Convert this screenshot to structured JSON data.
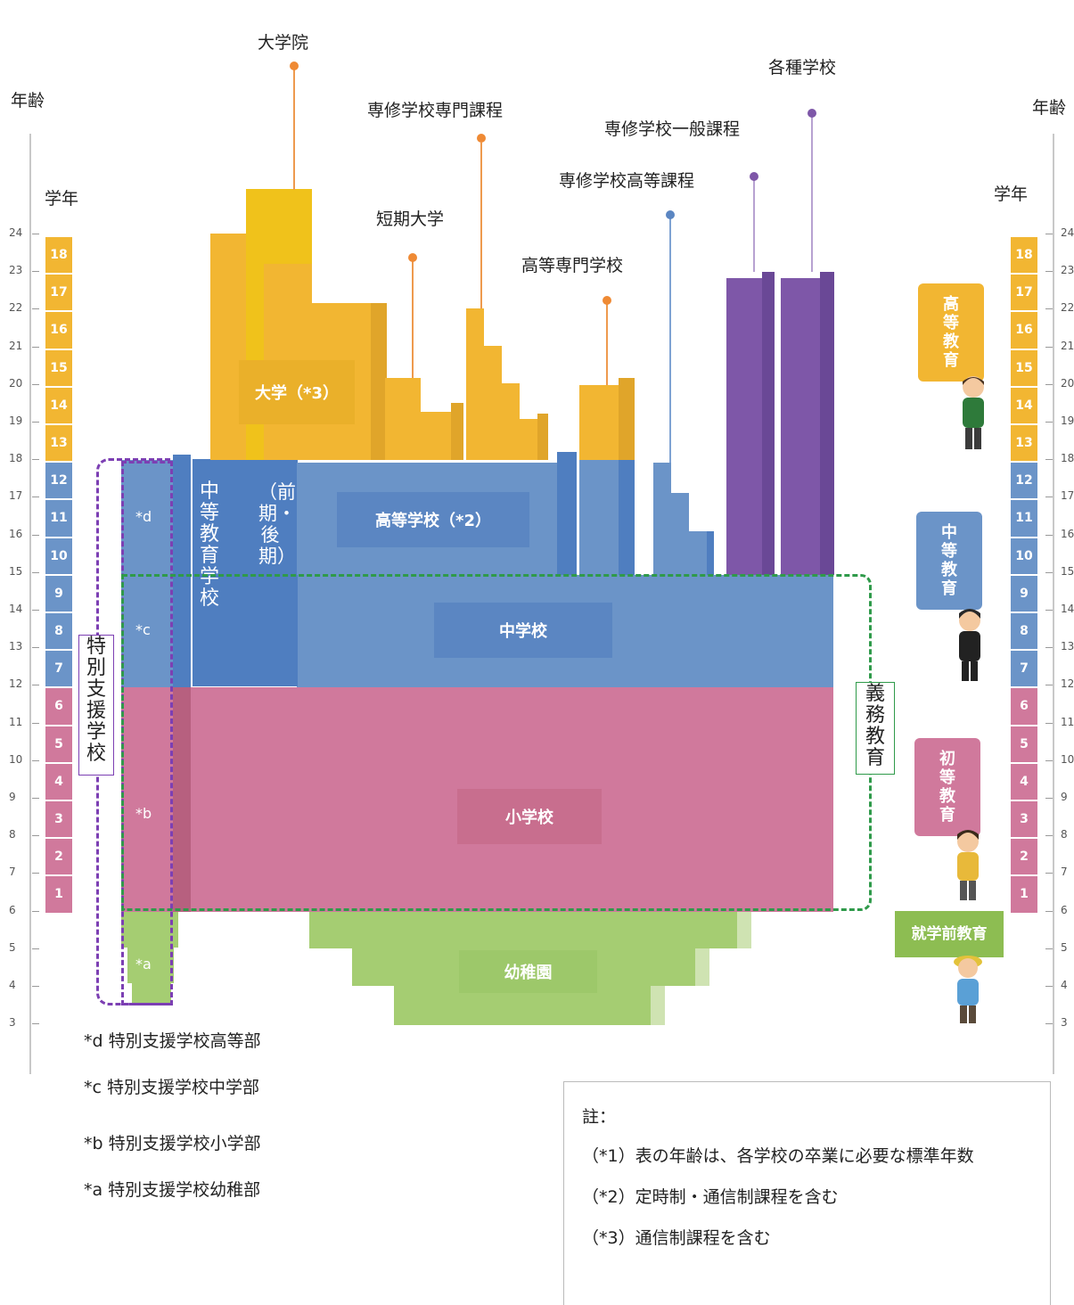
{
  "axes": {
    "age_label_left": "年齢",
    "age_label_right": "年齢",
    "grade_label_left": "学年",
    "grade_label_right": "学年",
    "ages": [
      "24",
      "23",
      "22",
      "21",
      "20",
      "19",
      "18",
      "17",
      "16",
      "15",
      "14",
      "13",
      "12",
      "11",
      "10",
      "9",
      "8",
      "7",
      "6",
      "5",
      "4",
      "3"
    ],
    "grades": [
      "18",
      "17",
      "16",
      "15",
      "14",
      "13",
      "12",
      "11",
      "10",
      "9",
      "8",
      "7",
      "6",
      "5",
      "4",
      "3",
      "2",
      "1"
    ]
  },
  "institutions": {
    "graduate_school": "大学院",
    "university": "大学（*3）",
    "specialized_training_specialized": "専修学校専門課程",
    "junior_college": "短期大学",
    "specialized_training_general": "専修学校一般課程",
    "specialized_training_upper": "専修学校高等課程",
    "technical_college": "高等専門学校",
    "miscellaneous_schools": "各種学校",
    "high_school": "高等学校（*2）",
    "secondary_school": "中等教育学校",
    "secondary_school_note": "（前期・後期）",
    "junior_high": "中学校",
    "elementary": "小学校",
    "kindergarten": "幼稚園",
    "special_needs_school": "特別支援学校",
    "compulsory_education": "義務教育"
  },
  "special_codes": {
    "d": "*d",
    "c": "*c",
    "b": "*b",
    "a": "*a"
  },
  "legend": {
    "d": "*d  特別支援学校高等部",
    "c": "*c  特別支援学校中学部",
    "b": "*b  特別支援学校小学部",
    "a": "*a  特別支援学校幼稚部"
  },
  "stages": {
    "higher": "高等教育",
    "secondary": "中等教育",
    "primary": "初等教育",
    "preschool": "就学前教育"
  },
  "notes": {
    "title": "註：",
    "n1": "（*1）表の年齢は、各学校の卒業に必要な標準年数",
    "n2": "（*2）定時制・通信制課程を含む",
    "n3": "（*3）通信制課程を含む"
  },
  "colors": {
    "higher": "#f2b632",
    "secondary": "#6b94c8",
    "primary": "#d0799c",
    "preschool": "#a5cd72",
    "misc": "#7e57a8"
  }
}
